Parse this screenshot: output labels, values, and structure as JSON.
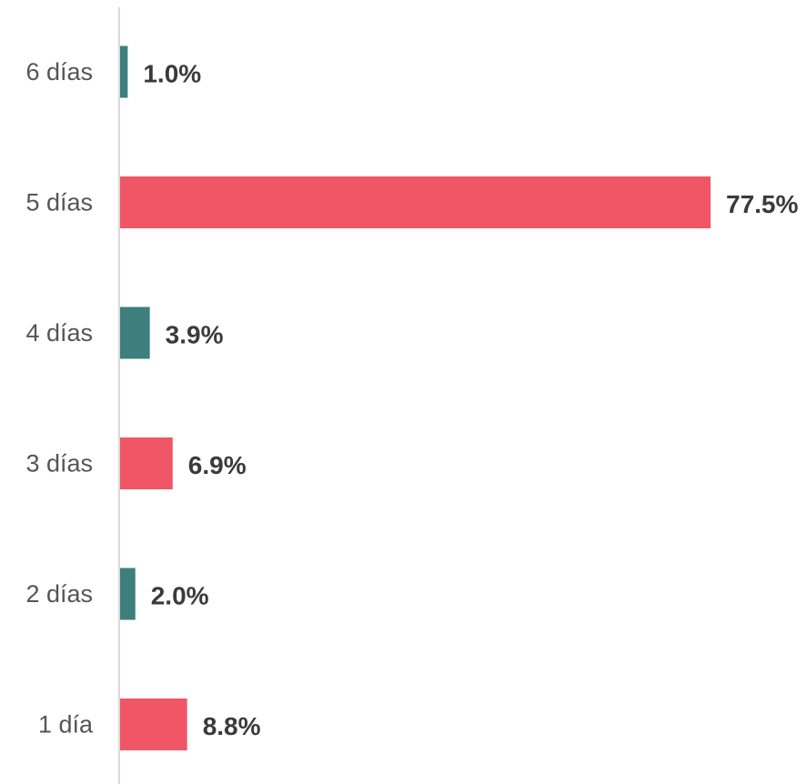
{
  "chart_data": {
    "type": "bar",
    "orientation": "horizontal",
    "categories": [
      "6 días",
      "5 días",
      "4 días",
      "3 días",
      "2 días",
      "1 día"
    ],
    "values": [
      1.0,
      77.5,
      3.9,
      6.9,
      2.0,
      8.8
    ],
    "value_labels": [
      "1.0%",
      "77.5%",
      "3.9%",
      "6.9%",
      "2.0%",
      "8.8%"
    ],
    "unit": "%",
    "colors": [
      "#3d7f7d",
      "#f05665",
      "#3d7f7d",
      "#f05665",
      "#3d7f7d",
      "#f05665"
    ],
    "title": "",
    "xlabel": "",
    "ylabel": "",
    "xlim": [
      0,
      77.5
    ],
    "grid": false,
    "legend": "none"
  },
  "colors": {
    "teal": "#3d7f7d",
    "coral": "#f05665",
    "axis": "#d9d9d9",
    "category_text": "#555555",
    "value_text": "#3a3a3a"
  }
}
